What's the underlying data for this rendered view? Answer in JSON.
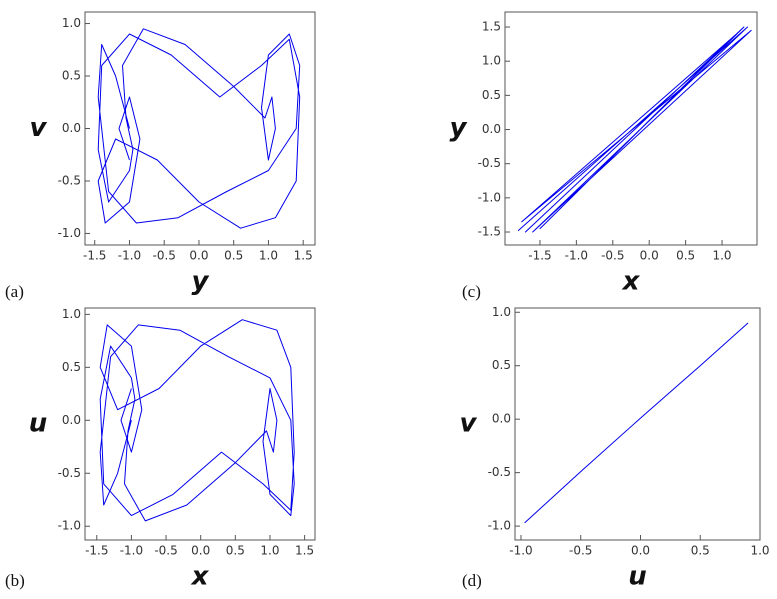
{
  "chart_data": [
    {
      "type": "line",
      "panel_label": "(a)",
      "xlabel": "y",
      "ylabel": "v",
      "color": "#0000ee",
      "x": [
        -1.0,
        -1.2,
        -1.4,
        -1.45,
        -1.3,
        -0.9,
        -0.3,
        0.4,
        1.0,
        1.4,
        1.45,
        1.3,
        1.0,
        0.9,
        1.0,
        1.1,
        1.05,
        0.95,
        0.5,
        -0.2,
        -0.8,
        -1.1,
        -1.05,
        -0.95,
        -1.0,
        -1.3,
        -1.45,
        -1.4,
        -1.0,
        -0.4,
        0.3,
        0.9,
        1.3,
        1.45,
        1.4,
        1.1,
        0.6,
        0.0,
        -0.6,
        -1.2,
        -1.45,
        -1.35,
        -1.0,
        -0.85,
        -1.0,
        -1.15,
        -1.0
      ],
      "values": [
        0.0,
        0.5,
        0.8,
        0.3,
        -0.6,
        -0.9,
        -0.85,
        -0.6,
        -0.4,
        0.0,
        0.6,
        0.9,
        0.7,
        0.2,
        -0.3,
        0.0,
        0.3,
        0.1,
        0.4,
        0.8,
        0.95,
        0.6,
        0.1,
        -0.2,
        -0.4,
        -0.7,
        -0.2,
        0.6,
        0.9,
        0.7,
        0.3,
        0.6,
        0.85,
        0.3,
        -0.5,
        -0.85,
        -0.95,
        -0.7,
        -0.3,
        -0.1,
        -0.5,
        -0.9,
        -0.7,
        -0.1,
        0.3,
        0.0,
        -0.3
      ],
      "xlim": [
        -1.64,
        1.67
      ],
      "ylim": [
        -1.11,
        1.11
      ],
      "xticks": [
        -1.5,
        {
          "value": -1.0,
          "label": "-1.0"
        },
        -0.5,
        {
          "value": 0,
          "label": "0.0"
        },
        0.5,
        {
          "value": 1,
          "label": "1.0"
        },
        1.5
      ],
      "yticks": [
        {
          "value": -1.0,
          "label": "-1.0"
        },
        -0.5,
        {
          "value": 0,
          "label": "0.0"
        },
        0.5,
        {
          "value": 1,
          "label": "1.0"
        }
      ]
    },
    {
      "type": "line",
      "panel_label": "(b)",
      "xlabel": "x",
      "ylabel": "u",
      "color": "#0000ee",
      "x": [
        -1.0,
        -1.2,
        -1.4,
        -1.45,
        -1.3,
        -0.9,
        -0.3,
        0.4,
        1.0,
        1.3,
        1.35,
        1.3,
        1.0,
        0.9,
        1.0,
        1.1,
        1.05,
        0.95,
        0.5,
        -0.2,
        -0.8,
        -1.1,
        -1.05,
        -0.95,
        -1.0,
        -1.3,
        -1.45,
        -1.4,
        -1.0,
        -0.4,
        0.3,
        0.9,
        1.3,
        1.35,
        1.3,
        1.1,
        0.6,
        0.0,
        -0.6,
        -1.2,
        -1.45,
        -1.35,
        -1.0,
        -0.85,
        -1.0,
        -1.15,
        -1.0
      ],
      "values": [
        0.0,
        -0.5,
        -0.8,
        -0.3,
        0.6,
        0.9,
        0.85,
        0.6,
        0.4,
        0.0,
        -0.6,
        -0.9,
        -0.7,
        -0.2,
        0.3,
        0.0,
        -0.3,
        -0.1,
        -0.4,
        -0.8,
        -0.95,
        -0.6,
        -0.1,
        0.2,
        0.4,
        0.7,
        0.2,
        -0.6,
        -0.9,
        -0.7,
        -0.3,
        -0.6,
        -0.85,
        -0.3,
        0.5,
        0.85,
        0.95,
        0.7,
        0.3,
        0.1,
        0.5,
        0.9,
        0.7,
        0.1,
        -0.3,
        0.0,
        0.3
      ],
      "xlim": [
        -1.67,
        1.65
      ],
      "ylim": [
        -1.13,
        1.06
      ],
      "xticks": [
        -1.5,
        {
          "value": -1.0,
          "label": "-1.0"
        },
        -0.5,
        {
          "value": 0,
          "label": "0.0"
        },
        0.5,
        {
          "value": 1,
          "label": "1.0"
        },
        1.5
      ],
      "yticks": [
        {
          "value": -1.0,
          "label": "-1.0"
        },
        -0.5,
        {
          "value": 0,
          "label": "0.0"
        },
        0.5,
        {
          "value": 1,
          "label": "1.0"
        }
      ]
    },
    {
      "type": "line",
      "panel_label": "(c)",
      "xlabel": "x",
      "ylabel": "y",
      "color": "#0000ee",
      "x": [
        -1.8,
        1.35,
        -1.6,
        1.4,
        -1.75,
        1.2,
        -1.5,
        1.3,
        -1.7,
        1.1
      ],
      "values": [
        -1.48,
        1.5,
        -1.5,
        1.45,
        -1.35,
        1.4,
        -1.45,
        1.5,
        -1.5,
        1.3
      ],
      "xlim": [
        -1.98,
        1.48
      ],
      "ylim": [
        -1.69,
        1.72
      ],
      "xticks": [
        -1.5,
        {
          "value": -1.0,
          "label": "-1.0"
        },
        -0.5,
        {
          "value": 0,
          "label": "0.0"
        },
        0.5,
        {
          "value": 1,
          "label": "1.0"
        }
      ],
      "yticks": [
        -1.5,
        {
          "value": -1.0,
          "label": "-1.0"
        },
        -0.5,
        {
          "value": 0,
          "label": "0.0"
        },
        0.5,
        {
          "value": 1,
          "label": "1.0"
        },
        1.5
      ]
    },
    {
      "type": "line",
      "panel_label": "(d)",
      "xlabel": "u",
      "ylabel": "v",
      "color": "#0000ee",
      "x": [
        -0.97,
        -0.5,
        0.0,
        0.5,
        0.9
      ],
      "values": [
        -0.97,
        -0.49,
        0.01,
        0.5,
        0.9
      ],
      "xlim": [
        -1.05,
        1.0
      ],
      "ylim": [
        -1.13,
        1.04
      ],
      "xticks": [
        {
          "value": -1.0,
          "label": "-1.0"
        },
        -0.5,
        {
          "value": 0,
          "label": "0.0"
        },
        0.5,
        {
          "value": 1,
          "label": "1.0"
        }
      ],
      "yticks": [
        {
          "value": -1.0,
          "label": "-1.0"
        },
        -0.5,
        {
          "value": 0,
          "label": "0.0"
        },
        0.5,
        {
          "value": 1,
          "label": "1.0"
        }
      ]
    }
  ]
}
